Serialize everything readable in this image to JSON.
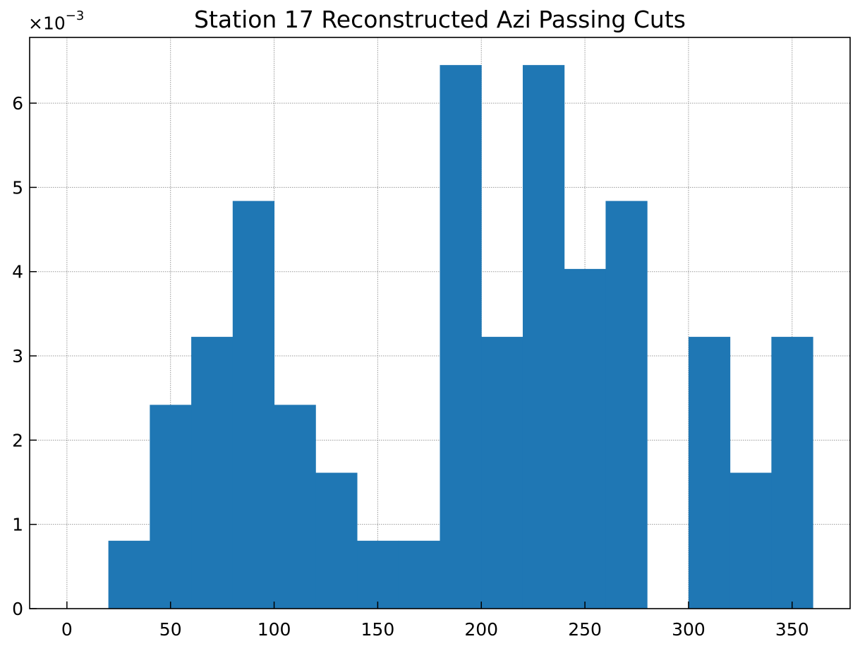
{
  "chart_data": {
    "type": "bar",
    "title": "Station 17 Reconstructed Azi Passing Cuts",
    "xlabel": "",
    "ylabel": "",
    "y_multiplier_base": "×10",
    "y_multiplier_exponent": "−3",
    "bin_edges": [
      0,
      20,
      40,
      60,
      80,
      100,
      120,
      140,
      160,
      180,
      200,
      220,
      240,
      260,
      280,
      300,
      320,
      340,
      360
    ],
    "values": [
      0,
      0.000806,
      0.002419,
      0.003226,
      0.004839,
      0.002419,
      0.001613,
      0.000806,
      0.000806,
      0.006452,
      0.003226,
      0.006452,
      0.004032,
      0.004839,
      0,
      0.003226,
      0.001613,
      0.003226
    ],
    "xlim": [
      -18,
      378
    ],
    "ylim": [
      0,
      0.00678
    ],
    "x_ticks": [
      0,
      50,
      100,
      150,
      200,
      250,
      300,
      350
    ],
    "y_ticks": [
      0,
      1,
      2,
      3,
      4,
      5,
      6
    ],
    "y_tick_scale": 0.001,
    "grid": true,
    "bar_color": "#1f77b4"
  }
}
